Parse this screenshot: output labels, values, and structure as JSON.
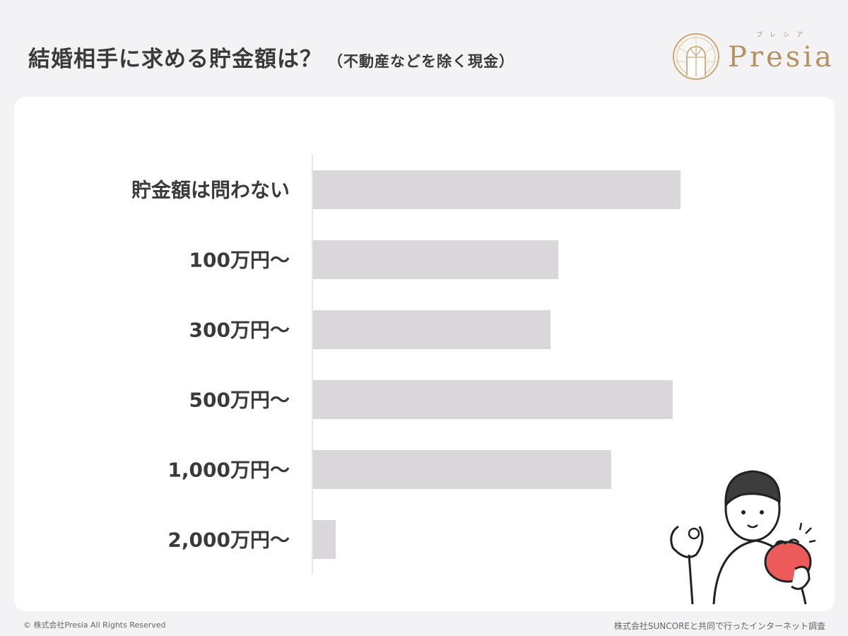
{
  "header": {
    "title": "結婚相手に求める貯金額は？",
    "subtitle": "（不動産などを除く現金）"
  },
  "logo": {
    "text": "Presia",
    "kana": "プレシア",
    "color": "#b59361"
  },
  "chart_data": {
    "type": "bar",
    "orientation": "horizontal",
    "categories": [
      "貯金額は問わない",
      "100万円〜",
      "300万円〜",
      "500万円〜",
      "1,000万円〜",
      "2,000万円〜"
    ],
    "values": [
      52,
      34.7,
      33.6,
      50.9,
      42.2,
      3.2
    ],
    "bar_color": "#d9d7da",
    "grid": false,
    "value_labels": false
  },
  "footer": {
    "copyright": "© 株式会社Presia All Rights Reserved",
    "source": "株式会社SUNCOREと共同で行ったインターネット調査"
  }
}
